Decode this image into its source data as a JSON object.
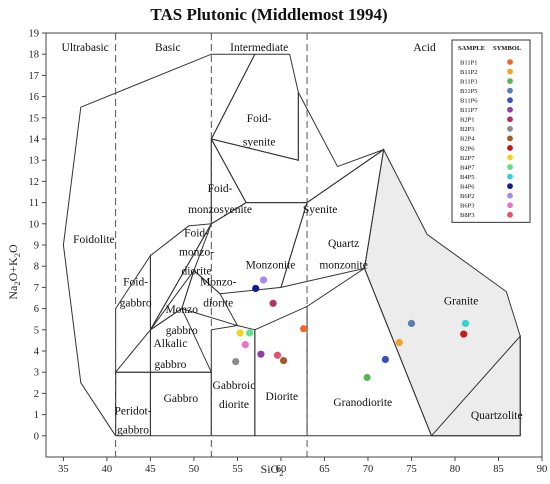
{
  "chart_data": {
    "type": "scatter",
    "title": "TAS Plutonic (Middlemost 1994)",
    "xlabel": "SiO",
    "xlabel_sub": "2",
    "ylabel_parts": [
      "Na",
      "2",
      "O+K",
      "2",
      "O"
    ],
    "xlim": [
      33,
      90
    ],
    "ylim": [
      -1,
      19
    ],
    "xticks": [
      35,
      40,
      45,
      50,
      55,
      60,
      65,
      70,
      75,
      80,
      85,
      90
    ],
    "yticks": [
      0,
      1,
      2,
      3,
      4,
      5,
      6,
      7,
      8,
      9,
      10,
      11,
      12,
      13,
      14,
      15,
      16,
      17,
      18,
      19
    ],
    "grid": false,
    "silica_bands": [
      {
        "label": "Ultrabasic",
        "x": 37.5
      },
      {
        "label": "Basic",
        "x": 47
      },
      {
        "label": "Intermediate",
        "x": 57.5
      },
      {
        "label": "Acid",
        "x": 76.5
      }
    ],
    "band_dividers": [
      41,
      52,
      63
    ],
    "fields": [
      {
        "name": "Foidolite",
        "points": [
          [
            41,
            0
          ],
          [
            41,
            3
          ],
          [
            45,
            3
          ],
          [
            45,
            5
          ],
          [
            52,
            10
          ],
          [
            52,
            14
          ],
          [
            57,
            18
          ],
          [
            52,
            18
          ],
          [
            37,
            15.5
          ],
          [
            35,
            9
          ],
          [
            37,
            2.5
          ],
          [
            41,
            0
          ]
        ]
      },
      {
        "name": "Foid-syenite",
        "points": [
          [
            52,
            14
          ],
          [
            57,
            18
          ],
          [
            61,
            18
          ],
          [
            62,
            16.2
          ],
          [
            62,
            13
          ],
          [
            52,
            14
          ]
        ]
      },
      {
        "name": "Foid-monzosyenite",
        "points": [
          [
            52,
            10
          ],
          [
            52,
            14
          ],
          [
            56,
            11
          ],
          [
            52,
            10
          ]
        ]
      },
      {
        "name": "Syenite",
        "points": [
          [
            56,
            11
          ],
          [
            52,
            14
          ],
          [
            62,
            13
          ],
          [
            62,
            16.2
          ],
          [
            66.5,
            12.7
          ],
          [
            71.8,
            13.5
          ],
          [
            63,
            11
          ],
          [
            56,
            11
          ]
        ]
      },
      {
        "name": "Foid-monzodiorite",
        "points": [
          [
            45,
            8.5
          ],
          [
            45,
            5
          ],
          [
            52,
            10
          ],
          [
            49.4,
            9.9
          ],
          [
            45,
            8.5
          ]
        ]
      },
      {
        "name": "Foid-gabbro",
        "points": [
          [
            41,
            3
          ],
          [
            45,
            5
          ],
          [
            45,
            8.5
          ],
          [
            41,
            6
          ],
          [
            41,
            3
          ]
        ]
      },
      {
        "name": "Monzonite",
        "points": [
          [
            50,
            7.8
          ],
          [
            52,
            10
          ],
          [
            56,
            11
          ],
          [
            63,
            11
          ],
          [
            60,
            7
          ],
          [
            53,
            6.7
          ],
          [
            50,
            7.8
          ]
        ]
      },
      {
        "name": "Monzodiorite",
        "points": [
          [
            48.6,
            6
          ],
          [
            50,
            7.8
          ],
          [
            53,
            6.7
          ],
          [
            55,
            5.2
          ],
          [
            48.6,
            6
          ]
        ]
      },
      {
        "name": "Monzogabbro",
        "points": [
          [
            45,
            5
          ],
          [
            48.6,
            6
          ],
          [
            50,
            7.8
          ],
          [
            45,
            5
          ]
        ]
      },
      {
        "name": "Quartz monzonite",
        "points": [
          [
            60,
            7
          ],
          [
            63,
            11
          ],
          [
            71.8,
            13.5
          ],
          [
            69.6,
            7.9
          ],
          [
            60,
            7
          ]
        ]
      },
      {
        "name": "Alkalic gabbro",
        "points": [
          [
            45,
            3
          ],
          [
            45,
            5
          ],
          [
            48.6,
            6
          ],
          [
            52,
            3
          ],
          [
            45,
            3
          ]
        ]
      },
      {
        "name": "Gabbro",
        "points": [
          [
            45,
            3
          ],
          [
            52,
            3
          ],
          [
            52,
            0
          ],
          [
            45,
            0
          ],
          [
            45,
            3
          ]
        ]
      },
      {
        "name": "Peridot-gabbro",
        "points": [
          [
            41,
            0
          ],
          [
            45,
            0
          ],
          [
            45,
            3
          ],
          [
            41,
            3
          ],
          [
            41,
            0
          ]
        ]
      },
      {
        "name": "Gabbroic diorite",
        "points": [
          [
            52,
            0
          ],
          [
            52,
            5
          ],
          [
            55,
            5.2
          ],
          [
            57,
            5
          ],
          [
            57,
            0
          ],
          [
            52,
            0
          ]
        ]
      },
      {
        "name": "Diorite",
        "points": [
          [
            57,
            0
          ],
          [
            57,
            5
          ],
          [
            63,
            6.1
          ],
          [
            63,
            0
          ],
          [
            57,
            0
          ]
        ]
      },
      {
        "name": "Granodiorite",
        "points": [
          [
            63,
            0
          ],
          [
            63,
            6.1
          ],
          [
            69.6,
            7.9
          ],
          [
            77.3,
            0
          ],
          [
            63,
            0
          ]
        ]
      },
      {
        "name": "Granite",
        "points": [
          [
            69.6,
            7.9
          ],
          [
            71.8,
            13.5
          ],
          [
            76.8,
            9.5
          ],
          [
            85.9,
            6.8
          ],
          [
            87.5,
            4.7
          ],
          [
            87.5,
            0
          ],
          [
            77.3,
            0
          ],
          [
            69.6,
            7.9
          ]
        ]
      },
      {
        "name": "Quartzolite",
        "points": [
          [
            77.3,
            0
          ],
          [
            87.5,
            0
          ],
          [
            87.5,
            4.7
          ],
          [
            77.3,
            0
          ]
        ]
      }
    ],
    "region_labels": [
      {
        "text": "Foidolite",
        "x": 38.5,
        "y": 9.1
      },
      {
        "text": "Foid-",
        "x": 57.5,
        "y": 14.8
      },
      {
        "text": "syenite",
        "x": 57.5,
        "y": 13.7
      },
      {
        "text": "Foid-",
        "x": 53,
        "y": 11.5
      },
      {
        "text": "monzosyenite",
        "x": 53,
        "y": 10.5
      },
      {
        "text": "Syenite",
        "x": 64.5,
        "y": 10.5
      },
      {
        "text": "Foid-",
        "x": 50.3,
        "y": 9.4
      },
      {
        "text": "monzo-",
        "x": 50.3,
        "y": 8.5
      },
      {
        "text": "diorite",
        "x": 50.3,
        "y": 7.6
      },
      {
        "text": "Foid-",
        "x": 43.3,
        "y": 7.1
      },
      {
        "text": "gabbro",
        "x": 43.3,
        "y": 6.1
      },
      {
        "text": "Monzonite",
        "x": 58.8,
        "y": 7.9
      },
      {
        "text": "Monzo-",
        "x": 52.8,
        "y": 7.1
      },
      {
        "text": "diorite",
        "x": 52.8,
        "y": 6.1
      },
      {
        "text": "Quartz",
        "x": 67.2,
        "y": 8.9
      },
      {
        "text": "monzonite",
        "x": 67.2,
        "y": 7.9
      },
      {
        "text": "Monzo",
        "x": 48.6,
        "y": 5.8
      },
      {
        "text": "gabbro",
        "x": 48.6,
        "y": 4.8
      },
      {
        "text": "Alkalic",
        "x": 47.3,
        "y": 4.2
      },
      {
        "text": "gabbro",
        "x": 47.3,
        "y": 3.2
      },
      {
        "text": "Gabbro",
        "x": 48.5,
        "y": 1.6
      },
      {
        "text": "Peridot-",
        "x": 43,
        "y": 1.0
      },
      {
        "text": "gabbro",
        "x": 43,
        "y": 0.1
      },
      {
        "text": "Gabbroic",
        "x": 54.6,
        "y": 2.2
      },
      {
        "text": "diorite",
        "x": 54.6,
        "y": 1.3
      },
      {
        "text": "Diorite",
        "x": 60.1,
        "y": 1.7
      },
      {
        "text": "Granodiorite",
        "x": 69.4,
        "y": 1.4
      },
      {
        "text": "Granite",
        "x": 80.7,
        "y": 6.2
      },
      {
        "text": "Quartzolite",
        "x": 84.8,
        "y": 0.8
      }
    ],
    "legend_headers": [
      "SAMPLE",
      "SYMBOL"
    ],
    "series": [
      {
        "name": "B11P1",
        "color": "#ee6a2a",
        "x": 62.6,
        "y": 5.05
      },
      {
        "name": "B11P2",
        "color": "#f0a231",
        "x": 73.6,
        "y": 4.4
      },
      {
        "name": "B11P3",
        "color": "#5ab55a",
        "x": 69.9,
        "y": 2.75
      },
      {
        "name": "B11P5",
        "color": "#5b7db5",
        "x": 75.0,
        "y": 5.3
      },
      {
        "name": "B11P6",
        "color": "#3b4fb8",
        "x": 72.0,
        "y": 3.6
      },
      {
        "name": "B11P7",
        "color": "#8e3ea8",
        "x": 57.7,
        "y": 3.85
      },
      {
        "name": "B2P1",
        "color": "#b03366",
        "x": 59.1,
        "y": 6.25
      },
      {
        "name": "B2P3",
        "color": "#8c8c8c",
        "x": 54.8,
        "y": 3.5
      },
      {
        "name": "B2P4",
        "color": "#a3582a",
        "x": 60.3,
        "y": 3.55
      },
      {
        "name": "B2P6",
        "color": "#c01b1b",
        "x": 81.0,
        "y": 4.8
      },
      {
        "name": "B2P7",
        "color": "#f2d21e",
        "x": 55.3,
        "y": 4.85
      },
      {
        "name": "B4P7",
        "color": "#5fe08a",
        "x": 56.4,
        "y": 4.85
      },
      {
        "name": "B4P5",
        "color": "#2fd5d5",
        "x": 81.2,
        "y": 5.3
      },
      {
        "name": "B4P6",
        "color": "#131a9a",
        "x": 57.1,
        "y": 6.95
      },
      {
        "name": "B6P2",
        "color": "#a98ae0",
        "x": 58.0,
        "y": 7.35
      },
      {
        "name": "B6P3",
        "color": "#ec72c0",
        "x": 55.9,
        "y": 4.3
      },
      {
        "name": "B8P3",
        "color": "#e4506e",
        "x": 59.6,
        "y": 3.8
      }
    ]
  }
}
